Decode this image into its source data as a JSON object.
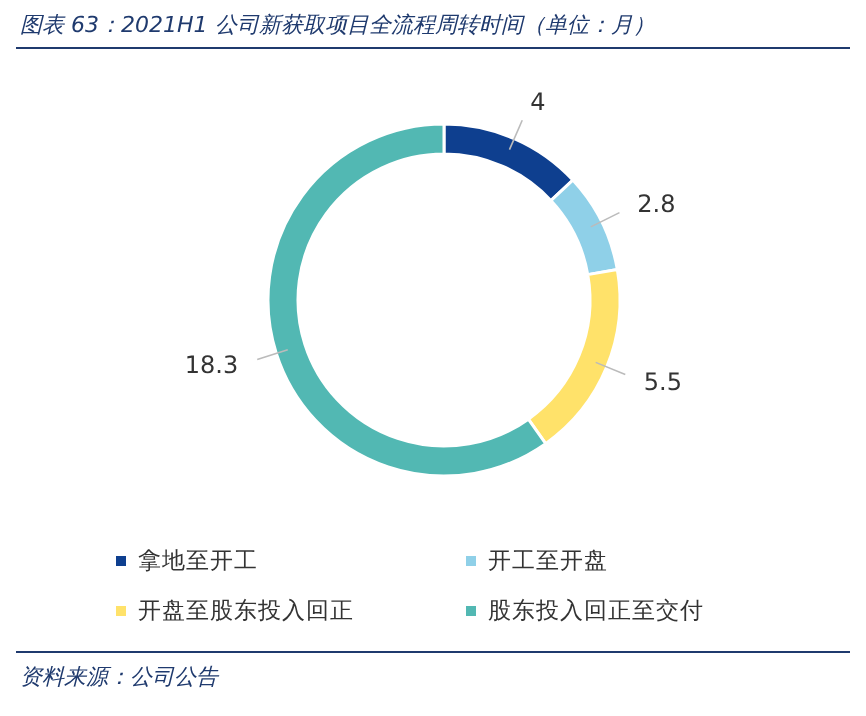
{
  "chart_data": {
    "type": "donut",
    "title": "图表 63：2021H1 公司新获取项目全流程周转时间（单位：月）",
    "categories": [
      "拿地至开工",
      "开工至开盘",
      "开盘至股东投入回正",
      "股东投入回正至交付"
    ],
    "values": [
      4,
      2.8,
      5.5,
      18.3
    ],
    "colors": [
      "#0e3f8f",
      "#8fd0e8",
      "#ffe26a",
      "#52b8b3"
    ],
    "data_labels": true,
    "legend": "bottom",
    "annotations": [
      "资料来源：公司公告"
    ]
  }
}
